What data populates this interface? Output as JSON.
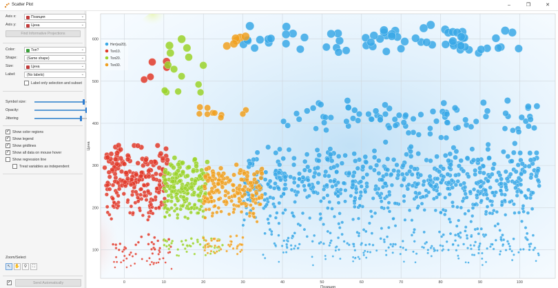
{
  "window": {
    "title": "Scatter Plot",
    "controls": {
      "minimize": "–",
      "maximize": "❐",
      "close": "✕"
    }
  },
  "panel": {
    "axis_x": {
      "label": "Axis x:",
      "value": "Позиция",
      "icon_color": "#c23a3a"
    },
    "axis_y": {
      "label": "Axis y:",
      "value": "Цена",
      "icon_color": "#c23a3a"
    },
    "find_projections": "Find Informative Projections",
    "color": {
      "label": "Color:",
      "value": "Топ?",
      "icon_color": "#3aa03a"
    },
    "shape": {
      "label": "Shape:",
      "value": "(Same shape)"
    },
    "size": {
      "label": "Size:",
      "value": "Цена",
      "icon_color": "#c23a3a"
    },
    "label": {
      "label": "Label:",
      "value": "(No labels)"
    },
    "label_only_selection": "Label only selection and subset",
    "symbol_size": "Symbol size:",
    "opacity": "Opacity:",
    "jittering": "Jittering",
    "symbol_size_level": 0.95,
    "opacity_level": 1.0,
    "jittering_level": 0.9,
    "checks": [
      {
        "text": "Show color regions",
        "checked": true
      },
      {
        "text": "Show legend",
        "checked": true
      },
      {
        "text": "Show gridlines",
        "checked": true
      },
      {
        "text": "Show all data on mouse hover",
        "checked": true
      },
      {
        "text": "Show regression line",
        "checked": false
      },
      {
        "text": "Treat variables as independent",
        "checked": false
      }
    ],
    "zoom_select": "Zoom/Select",
    "send_automatically": "Send Automatically"
  },
  "chart_data": {
    "type": "scatter",
    "xlabel": "Позиция",
    "ylabel": "Цена",
    "xlim": [
      -6,
      109
    ],
    "ylim": [
      32,
      660
    ],
    "xticks": [
      0,
      10,
      20,
      30,
      40,
      50,
      60,
      70,
      80,
      90,
      100
    ],
    "yticks": [
      100,
      200,
      300,
      400,
      500,
      600
    ],
    "grid": true,
    "legend_position": "top-left",
    "legend": [
      {
        "name": "Нет(из20).",
        "color": "#3aa8e6"
      },
      {
        "name": "Топ10.",
        "color": "#e03a2a"
      },
      {
        "name": "Топ20.",
        "color": "#9ad22a"
      },
      {
        "name": "Топ30.",
        "color": "#f0a020"
      }
    ],
    "series": [
      {
        "name": "Нет(из20).",
        "color": "#3aa8e6",
        "clusters": [
          {
            "x_range": [
              30,
              105
            ],
            "y_range": [
              150,
              360
            ],
            "count": 650
          },
          {
            "x_range": [
              35,
              105
            ],
            "y_range": [
              60,
              160
            ],
            "count": 230
          },
          {
            "x_range": [
              40,
              105
            ],
            "y_range": [
              360,
              460
            ],
            "count": 90
          },
          {
            "x_range": [
              30,
              100
            ],
            "y_range": [
              560,
              640
            ],
            "count": 70
          }
        ]
      },
      {
        "name": "Топ10.",
        "color": "#e03a2a",
        "clusters": [
          {
            "x_range": [
              -5,
              11
            ],
            "y_range": [
              160,
              360
            ],
            "count": 230
          },
          {
            "x_range": [
              -3,
              12
            ],
            "y_range": [
              50,
              140
            ],
            "count": 60
          },
          {
            "x_range": [
              5,
              11
            ],
            "y_range": [
              440,
              580
            ],
            "count": 5
          }
        ]
      },
      {
        "name": "Топ20.",
        "color": "#9ad22a",
        "clusters": [
          {
            "x_range": [
              10,
              21
            ],
            "y_range": [
              160,
              330
            ],
            "count": 190
          },
          {
            "x_range": [
              10,
              25
            ],
            "y_range": [
              80,
              140
            ],
            "count": 50
          },
          {
            "x_range": [
              10,
              20
            ],
            "y_range": [
              430,
              620
            ],
            "count": 14
          }
        ]
      },
      {
        "name": "Топ30.",
        "color": "#f0a020",
        "clusters": [
          {
            "x_range": [
              20,
              35
            ],
            "y_range": [
              160,
              310
            ],
            "count": 180
          },
          {
            "x_range": [
              20,
              30
            ],
            "y_range": [
              80,
              140
            ],
            "count": 40
          },
          {
            "x_range": [
              18,
              31
            ],
            "y_range": [
              410,
              440
            ],
            "count": 10
          },
          {
            "x_range": [
              24,
              31
            ],
            "y_range": [
              580,
              620
            ],
            "count": 6
          }
        ]
      }
    ]
  }
}
